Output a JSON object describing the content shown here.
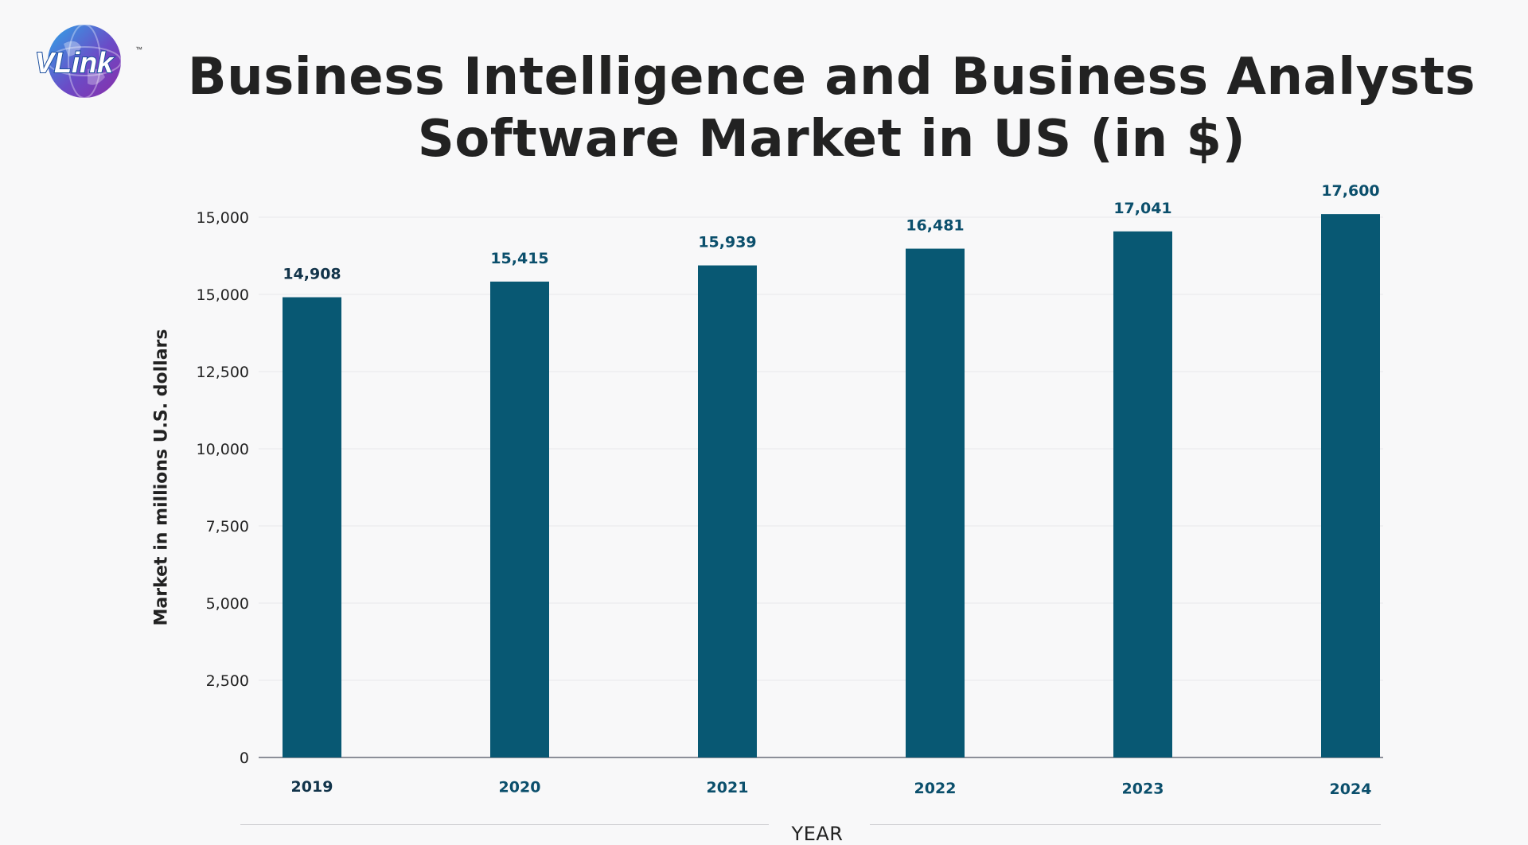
{
  "logo": {
    "text": "VLink",
    "tm": "™"
  },
  "chart_data": {
    "type": "bar",
    "title_lines": [
      "Business Intelligence and Business Analysts",
      "Software Market in US (in $)"
    ],
    "xlabel": "YEAR",
    "ylabel": "Market in millions U.S. dollars",
    "categories": [
      "2019",
      "2020",
      "2021",
      "2022",
      "2023",
      "2024"
    ],
    "values": [
      14908,
      15415,
      15939,
      16481,
      17041,
      17600
    ],
    "data_labels": [
      "14,908",
      "15,415",
      "15,939",
      "16,481",
      "17,041",
      "17,600"
    ],
    "y_tick_labels": [
      "0",
      "2,500",
      "5,000",
      "7,500",
      "10,000",
      "12,500",
      "15,000",
      "15,000"
    ],
    "grid": true,
    "legend": "none",
    "colors": {
      "bar": "#085873",
      "label_primary": "#12344a",
      "label_teal": "#0b4f6c",
      "grid": "#e7e7ea",
      "axis": "#8c8f99"
    }
  }
}
